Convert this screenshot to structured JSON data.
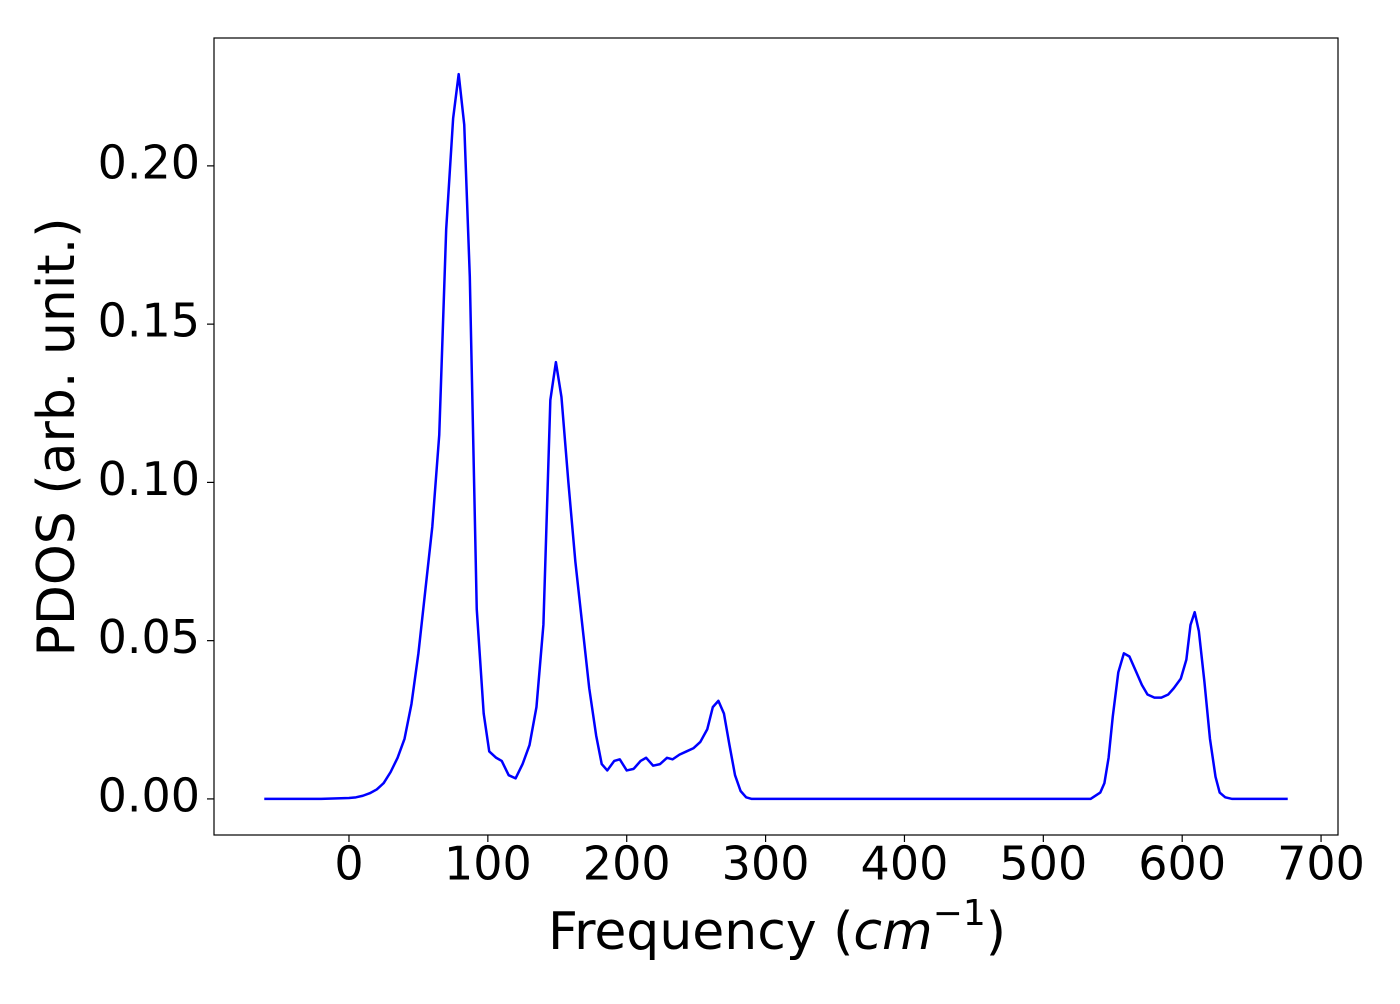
{
  "chart_data": {
    "type": "line",
    "xlabel": {
      "text": "Frequency (",
      "math": "cm",
      "exponent": "−1",
      "end": ")"
    },
    "ylabel": "PDOS (arb. unit.)",
    "x": [
      -61,
      -40,
      -20,
      0,
      5,
      10,
      15,
      20,
      25,
      30,
      35,
      40,
      45,
      50,
      55,
      60,
      65,
      70,
      75,
      79,
      83,
      87,
      92,
      97,
      101,
      106,
      110,
      115,
      120,
      125,
      130,
      135,
      140,
      145,
      149,
      153,
      158,
      163,
      168,
      173,
      178,
      182,
      186,
      191,
      195,
      200,
      205,
      210,
      214,
      219,
      224,
      229,
      233,
      238,
      243,
      248,
      253,
      258,
      262,
      266,
      270,
      274,
      278,
      282,
      286,
      290,
      295,
      534,
      541,
      544,
      547,
      550,
      554,
      558,
      562,
      567,
      571,
      575,
      580,
      585,
      590,
      594,
      599,
      603,
      606,
      609,
      612,
      616,
      620,
      624,
      627,
      631,
      636,
      676
    ],
    "series": [
      {
        "color": "#0000ff",
        "values": [
          0,
          0,
          0,
          0.0003,
          0.0005,
          0.001,
          0.0018,
          0.003,
          0.005,
          0.0085,
          0.013,
          0.019,
          0.03,
          0.046,
          0.066,
          0.086,
          0.115,
          0.18,
          0.215,
          0.229,
          0.213,
          0.165,
          0.06,
          0.027,
          0.015,
          0.013,
          0.012,
          0.0075,
          0.0065,
          0.011,
          0.017,
          0.029,
          0.055,
          0.126,
          0.138,
          0.127,
          0.1,
          0.075,
          0.055,
          0.035,
          0.02,
          0.011,
          0.009,
          0.012,
          0.0125,
          0.009,
          0.0095,
          0.012,
          0.013,
          0.0105,
          0.011,
          0.013,
          0.0125,
          0.014,
          0.015,
          0.016,
          0.018,
          0.022,
          0.029,
          0.031,
          0.027,
          0.017,
          0.0075,
          0.0025,
          0.0005,
          0,
          0,
          0,
          0.002,
          0.005,
          0.013,
          0.026,
          0.04,
          0.046,
          0.045,
          0.04,
          0.036,
          0.033,
          0.032,
          0.032,
          0.033,
          0.035,
          0.038,
          0.044,
          0.055,
          0.059,
          0.053,
          0.037,
          0.019,
          0.007,
          0.002,
          0.0005,
          0,
          0
        ]
      }
    ],
    "xlim": [
      -97.2,
      712.2
    ],
    "xticks": [
      0,
      100,
      200,
      300,
      400,
      500,
      600,
      700
    ],
    "ylim": [
      -0.0114,
      0.2404
    ],
    "yticks": [
      {
        "value": 0,
        "label": "0.00"
      },
      {
        "value": 0.05,
        "label": "0.05"
      },
      {
        "value": 0.1,
        "label": "0.10"
      },
      {
        "value": 0.15,
        "label": "0.15"
      },
      {
        "value": 0.2,
        "label": "0.20"
      }
    ]
  }
}
